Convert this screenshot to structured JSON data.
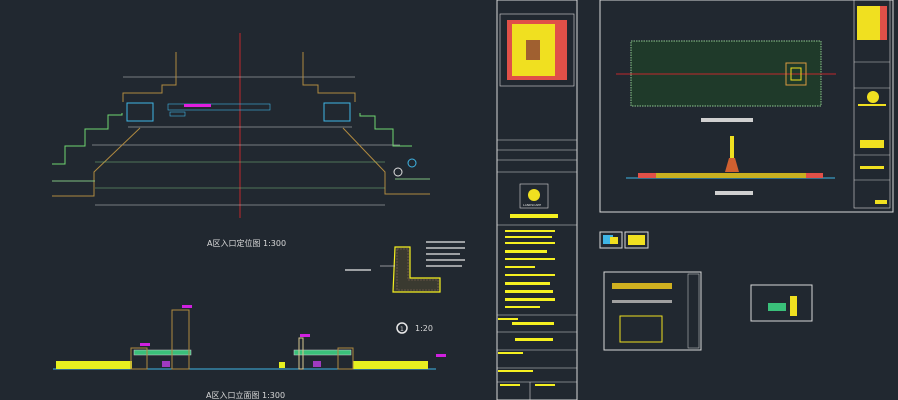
{
  "drawing": {
    "plan_title": "A区入口定位图 1:300",
    "elevation_title": "A区入口立面图 1:300",
    "detail_number": "1",
    "detail_scale": "1:20",
    "logo_text": "LANDSCAPE"
  },
  "colors": {
    "background": "#212830",
    "axis": "#c0282c",
    "outline": "#d0d0d0",
    "green": "#6fd66f",
    "cyan": "#3fb6e6",
    "magenta": "#e01ee0",
    "yellow": "#f5f020",
    "tan": "#b08a40"
  }
}
